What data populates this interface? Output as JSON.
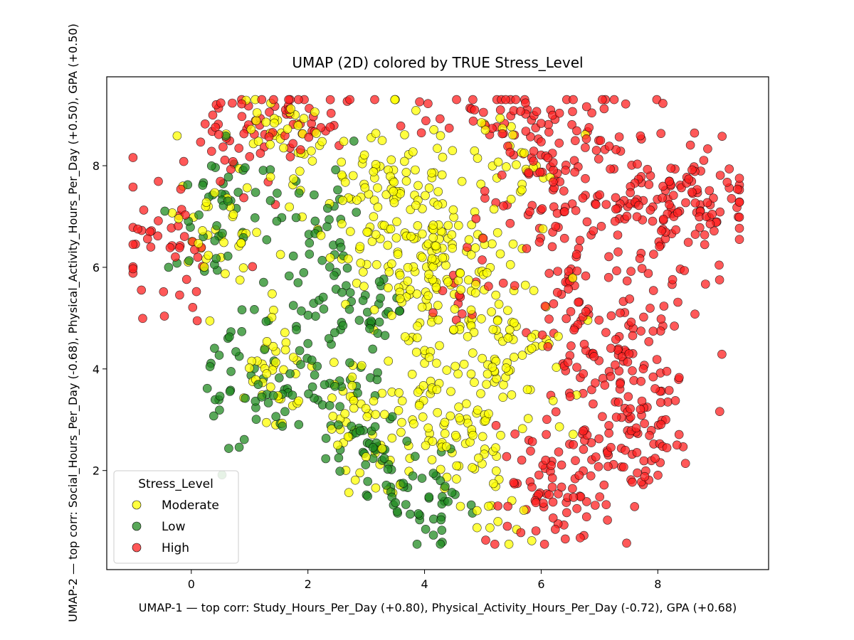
{
  "chart_data": {
    "type": "scatter",
    "title": "UMAP (2D) colored by TRUE Stress_Level",
    "xlabel": "UMAP-1 — top corr: Study_Hours_Per_Day (+0.80), Physical_Activity_Hours_Per_Day (-0.72), GPA (+0.68)",
    "ylabel": "UMAP-2 — top corr: Social_Hours_Per_Day (-0.68), Physical_Activity_Hours_Per_Day (+0.50), GPA (+0.50)",
    "xlim": [
      -1.45,
      9.9
    ],
    "ylim": [
      0.05,
      9.75
    ],
    "xticks": [
      0,
      2,
      4,
      6,
      8
    ],
    "yticks": [
      2,
      4,
      6,
      8
    ],
    "grid": false,
    "legend": {
      "title": "Stress_Level",
      "placement": "lower-left"
    },
    "series": [
      {
        "name": "Moderate",
        "color": "#ffff00",
        "regions": [
          {
            "cx": 3.5,
            "cy": 7.3,
            "sx": 0.75,
            "sy": 0.9,
            "n": 150
          },
          {
            "cx": 4.2,
            "cy": 5.6,
            "sx": 0.55,
            "sy": 0.8,
            "n": 90
          },
          {
            "cx": 5.4,
            "cy": 4.6,
            "sx": 0.55,
            "sy": 1.1,
            "n": 90
          },
          {
            "cx": 4.1,
            "cy": 2.8,
            "sx": 0.9,
            "sy": 0.7,
            "n": 110
          },
          {
            "cx": 1.4,
            "cy": 4.2,
            "sx": 0.4,
            "sy": 0.7,
            "n": 40
          },
          {
            "cx": 0.5,
            "cy": 6.7,
            "sx": 0.35,
            "sy": 0.5,
            "n": 35
          },
          {
            "cx": 1.5,
            "cy": 8.6,
            "sx": 0.6,
            "sy": 0.4,
            "n": 40
          },
          {
            "cx": 5.6,
            "cy": 8.1,
            "sx": 0.4,
            "sy": 0.5,
            "n": 25
          },
          {
            "cx": 2.7,
            "cy": 3.3,
            "sx": 0.25,
            "sy": 0.4,
            "n": 20
          },
          {
            "cx": 5.2,
            "cy": 1.4,
            "sx": 0.3,
            "sy": 0.5,
            "n": 15
          }
        ]
      },
      {
        "name": "Low",
        "color": "#228b22",
        "regions": [
          {
            "cx": 2.3,
            "cy": 5.7,
            "sx": 0.35,
            "sy": 1.1,
            "n": 60
          },
          {
            "cx": 1.3,
            "cy": 3.9,
            "sx": 0.5,
            "sy": 0.8,
            "n": 65
          },
          {
            "cx": 2.8,
            "cy": 2.9,
            "sx": 0.45,
            "sy": 0.5,
            "n": 35
          },
          {
            "cx": 3.5,
            "cy": 1.9,
            "sx": 0.35,
            "sy": 0.45,
            "n": 35
          },
          {
            "cx": 0.7,
            "cy": 7.4,
            "sx": 0.5,
            "sy": 0.5,
            "n": 40
          },
          {
            "cx": 3.1,
            "cy": 5.0,
            "sx": 0.3,
            "sy": 0.5,
            "n": 25
          },
          {
            "cx": 4.3,
            "cy": 1.3,
            "sx": 0.4,
            "sy": 0.4,
            "n": 25
          },
          {
            "cx": 0.2,
            "cy": 6.2,
            "sx": 0.3,
            "sy": 0.3,
            "n": 10
          }
        ]
      },
      {
        "name": "High",
        "color": "#ff2020",
        "regions": [
          {
            "cx": 6.5,
            "cy": 7.6,
            "sx": 0.8,
            "sy": 0.9,
            "n": 140
          },
          {
            "cx": 8.5,
            "cy": 7.3,
            "sx": 0.55,
            "sy": 0.6,
            "n": 110
          },
          {
            "cx": 7.4,
            "cy": 4.3,
            "sx": 0.65,
            "sy": 1.0,
            "n": 130
          },
          {
            "cx": 6.4,
            "cy": 1.6,
            "sx": 0.7,
            "sy": 0.6,
            "n": 90
          },
          {
            "cx": 5.3,
            "cy": 9.0,
            "sx": 0.7,
            "sy": 0.25,
            "n": 40
          },
          {
            "cx": 1.8,
            "cy": 9.0,
            "sx": 0.9,
            "sy": 0.3,
            "n": 50
          },
          {
            "cx": -0.3,
            "cy": 6.5,
            "sx": 0.5,
            "sy": 0.6,
            "n": 45
          },
          {
            "cx": 0.7,
            "cy": 8.2,
            "sx": 0.6,
            "sy": 0.5,
            "n": 30
          },
          {
            "cx": 6.4,
            "cy": 5.3,
            "sx": 0.4,
            "sy": 0.6,
            "n": 30
          },
          {
            "cx": 4.6,
            "cy": 5.5,
            "sx": 0.2,
            "sy": 0.3,
            "n": 12
          },
          {
            "cx": 7.8,
            "cy": 2.6,
            "sx": 0.4,
            "sy": 0.4,
            "n": 40
          }
        ]
      }
    ]
  }
}
